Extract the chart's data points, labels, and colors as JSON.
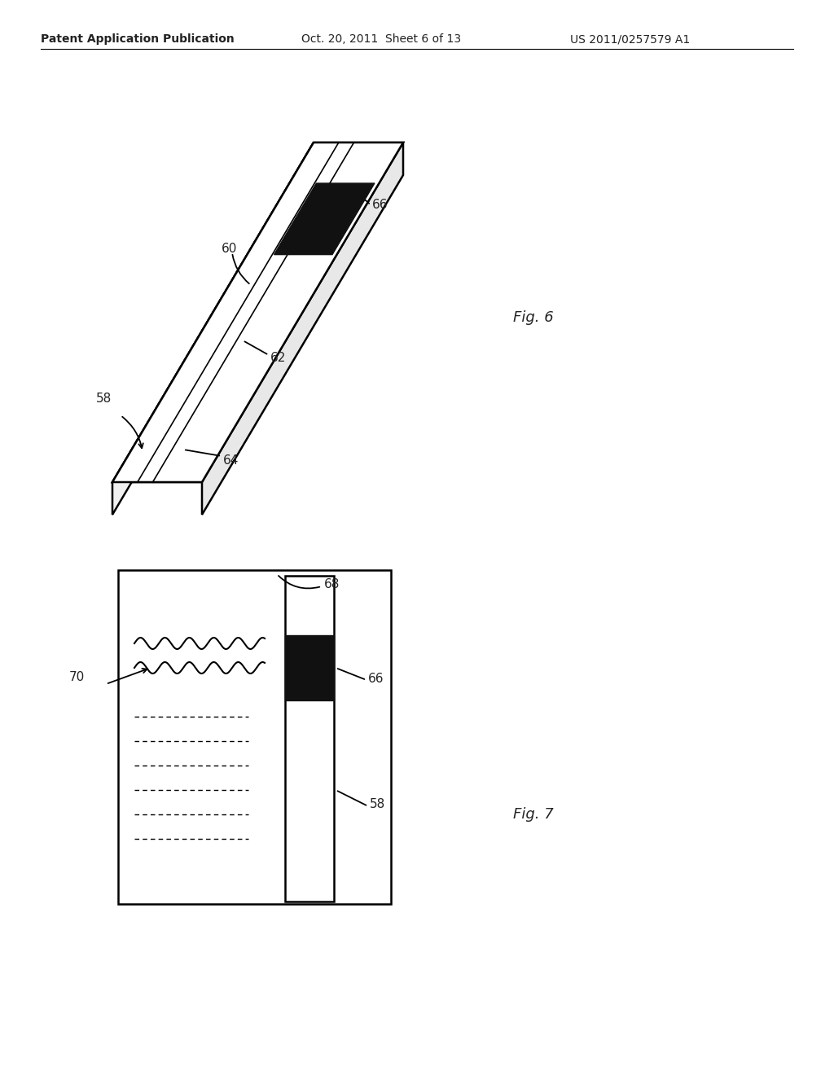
{
  "bg_color": "#ffffff",
  "header_text": "Patent Application Publication",
  "header_date": "Oct. 20, 2011  Sheet 6 of 13",
  "header_patent": "US 2011/0257579 A1",
  "fig6_label": "Fig. 6",
  "fig7_label": "Fig. 7",
  "line_color": "#000000",
  "label_color": "#222222",
  "fig6": {
    "label_58": "58",
    "label_60": "60",
    "label_62": "62",
    "label_64": "64",
    "label_66": "66"
  },
  "fig7": {
    "label_58": "58",
    "label_66": "66",
    "label_68": "68",
    "label_70": "70"
  }
}
